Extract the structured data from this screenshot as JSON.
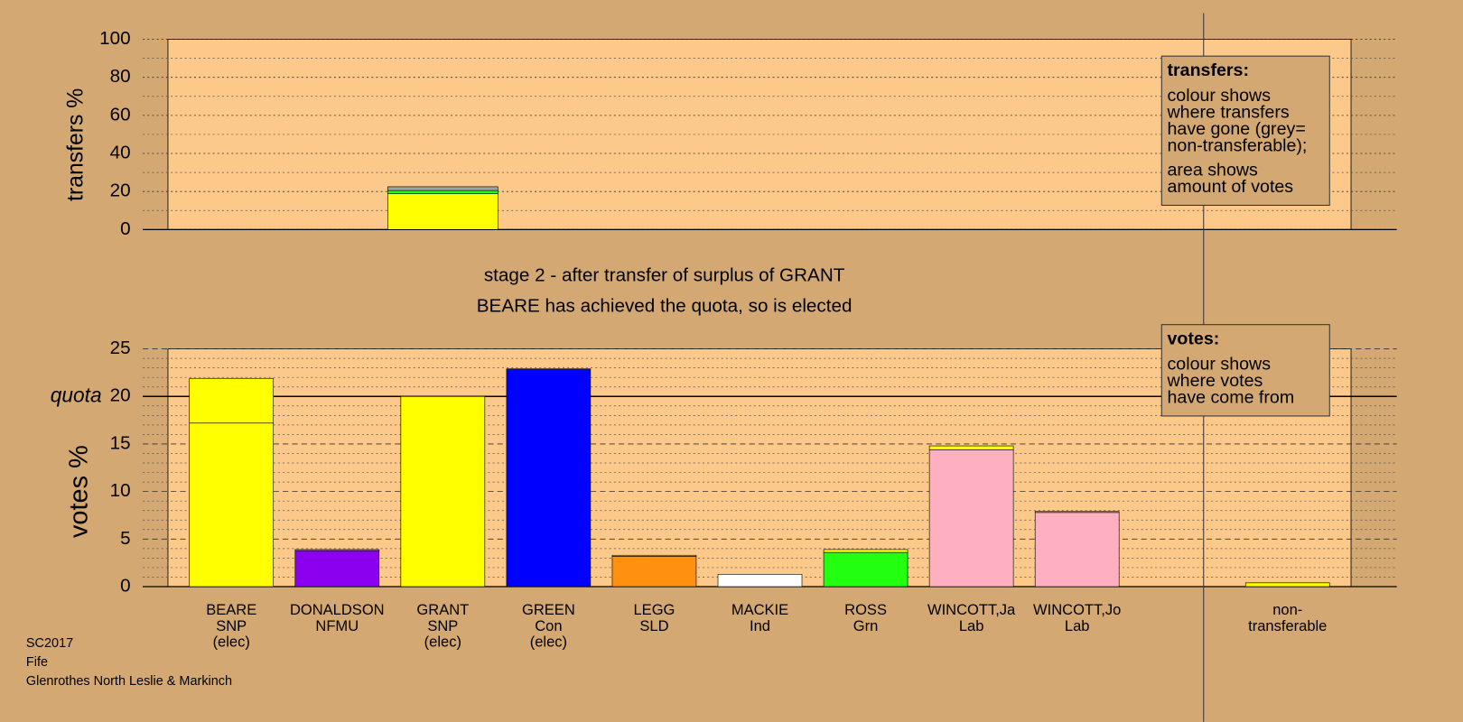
{
  "chart_data": [
    {
      "type": "bar",
      "ylabel": "transfers %",
      "ylim": [
        0,
        100
      ],
      "yticks": [
        0,
        20,
        40,
        60,
        80,
        100
      ],
      "yminor": [
        10,
        30,
        50,
        70,
        90
      ],
      "grid": true,
      "bars": [
        {
          "segments": []
        },
        {
          "segments": []
        },
        {
          "segments": [
            {
              "value": 18.8,
              "color": "#ffff00"
            },
            {
              "value": 1.7,
              "color": "#22ff11"
            },
            {
              "value": 2.0,
              "color": "#a0a0a0"
            }
          ]
        },
        {
          "segments": []
        },
        {
          "segments": []
        },
        {
          "segments": []
        },
        {
          "segments": []
        },
        {
          "segments": []
        },
        {
          "segments": []
        },
        {
          "segments": []
        }
      ],
      "annotation": {
        "heading": "transfers:",
        "lines": [
          "colour shows",
          "where transfers",
          "have gone (grey=",
          "non-transferable);"
        ],
        "lines2": [
          "area shows",
          "amount of votes"
        ]
      }
    },
    {
      "type": "bar",
      "title": [
        "stage 2 - after transfer of surplus of GRANT",
        "BEARE has achieved the quota, so is elected"
      ],
      "ylabel": "votes %",
      "ylim": [
        0,
        25
      ],
      "yticks": [
        0,
        5,
        10,
        15,
        20,
        25
      ],
      "yminor": [
        1,
        2,
        3,
        4,
        6,
        7,
        8,
        9,
        11,
        12,
        13,
        14,
        16,
        17,
        18,
        19,
        21,
        22,
        23,
        24
      ],
      "grid": true,
      "quota": {
        "label": "quota",
        "value": 20
      },
      "categories": [
        [
          "BEARE",
          "SNP",
          "(elec)"
        ],
        [
          "DONALDSON",
          "NFMU"
        ],
        [
          "GRANT",
          "SNP",
          "(elec)"
        ],
        [
          "GREEN",
          "Con",
          "(elec)"
        ],
        [
          "LEGG",
          "SLD"
        ],
        [
          "MACKIE",
          "Ind"
        ],
        [
          "ROSS",
          "Grn"
        ],
        [
          "WINCOTT,Ja",
          "Lab"
        ],
        [
          "WINCOTT,Jo",
          "Lab"
        ],
        [
          "non-",
          "transferable"
        ]
      ],
      "bars": [
        {
          "segments": [
            {
              "value": 17.2,
              "color": "#ffff00"
            },
            {
              "value": 4.7,
              "color": "#ffff00"
            }
          ]
        },
        {
          "segments": [
            {
              "value": 3.8,
              "color": "#8b00ee"
            },
            {
              "value": 0.1,
              "color": "#ffff00"
            }
          ]
        },
        {
          "segments": [
            {
              "value": 20,
              "color": "#ffff00"
            }
          ]
        },
        {
          "segments": [
            {
              "value": 22.9,
              "color": "#0000ff"
            }
          ]
        },
        {
          "segments": [
            {
              "value": 3.2,
              "color": "#ff9010"
            },
            {
              "value": 0.1,
              "color": "#ffff00"
            }
          ]
        },
        {
          "segments": [
            {
              "value": 1.3,
              "color": "#ffffff"
            }
          ]
        },
        {
          "segments": [
            {
              "value": 3.6,
              "color": "#22ff11"
            },
            {
              "value": 0.3,
              "color": "#ffff00"
            }
          ]
        },
        {
          "segments": [
            {
              "value": 14.4,
              "color": "#ffb0c0"
            },
            {
              "value": 0.4,
              "color": "#ffff00"
            }
          ]
        },
        {
          "segments": [
            {
              "value": 7.8,
              "color": "#ffb0c0"
            },
            {
              "value": 0.1,
              "color": "#ffff00"
            }
          ]
        },
        {
          "segments": [
            {
              "value": 0.4,
              "color": "#ffff00"
            }
          ]
        }
      ],
      "annotation": {
        "heading": "votes:",
        "lines": [
          "colour shows",
          "where votes",
          "have come from"
        ]
      }
    }
  ],
  "footer": [
    "SC2017",
    "Fife",
    "Glenrothes North Leslie & Markinch"
  ]
}
